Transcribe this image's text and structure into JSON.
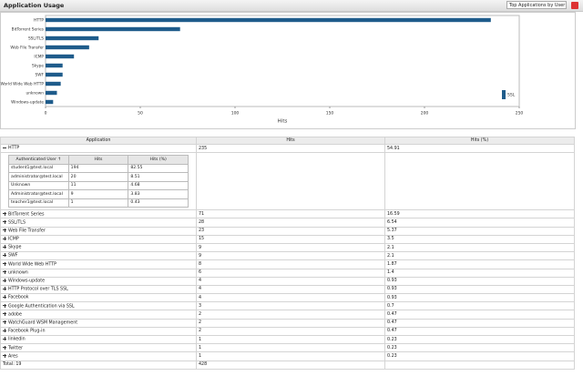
{
  "header": {
    "title": "Application Usage",
    "dropdown": "Top Applications by User"
  },
  "chart_data": {
    "type": "bar",
    "orientation": "horizontal",
    "categories": [
      "HTTP",
      "BitTorrent Series",
      "SSL/TLS",
      "Web File Transfer",
      "ICMP",
      "Skype",
      "SWF",
      "World Wide Web HTTP",
      "unknown",
      "Windows-update"
    ],
    "series": [
      {
        "name": "SSL",
        "color": "#1f5c8b",
        "values": [
          235,
          71,
          28,
          23,
          15,
          9,
          9,
          8,
          6,
          4
        ]
      }
    ],
    "xlim": [
      0,
      250
    ],
    "xticks": [
      0,
      50,
      100,
      150,
      200,
      250
    ],
    "xlabel": "Hits",
    "grid": false,
    "legend": "right"
  },
  "table": {
    "columns": [
      "Application",
      "Hits",
      "Hits (%)"
    ],
    "rows": [
      [
        "HTTP",
        235,
        54.91
      ],
      [
        "BitTorrent Series",
        71,
        16.59
      ],
      [
        "SSL/TLS",
        28,
        6.54
      ],
      [
        "Web File Transfer",
        23,
        5.37
      ],
      [
        "ICMP",
        15,
        3.5
      ],
      [
        "Skype",
        9,
        2.1
      ],
      [
        "SWF",
        9,
        2.1
      ],
      [
        "World Wide Web HTTP",
        8,
        1.87
      ],
      [
        "unknown",
        6,
        1.4
      ],
      [
        "Windows-update",
        4,
        0.93
      ],
      [
        "HTTP Protocol over TLS SSL",
        4,
        0.93
      ],
      [
        "Facebook",
        4,
        0.93
      ],
      [
        "Google Authentication via SSL",
        3,
        0.7
      ],
      [
        "adobe",
        2,
        0.47
      ],
      [
        "WatchGuard WSM Management",
        2,
        0.47
      ],
      [
        "Facebook Plug-in",
        2,
        0.47
      ],
      [
        "linkedin",
        1,
        0.23
      ],
      [
        "Twitter",
        1,
        0.23
      ],
      [
        "Ares",
        1,
        0.23
      ]
    ],
    "total": [
      "Total: 19",
      428
    ]
  },
  "subtable": {
    "columns": [
      "Authenticated User ↑",
      "Hits",
      "Hits (%)"
    ],
    "rows": [
      [
        "student1@test.local",
        194,
        82.55
      ],
      [
        "administrator@test.local",
        20,
        8.51
      ],
      [
        "Unknown",
        11,
        4.68
      ],
      [
        "Administrator@test.local",
        9,
        3.83
      ],
      [
        "teacher1@test.local",
        1,
        0.43
      ]
    ]
  }
}
